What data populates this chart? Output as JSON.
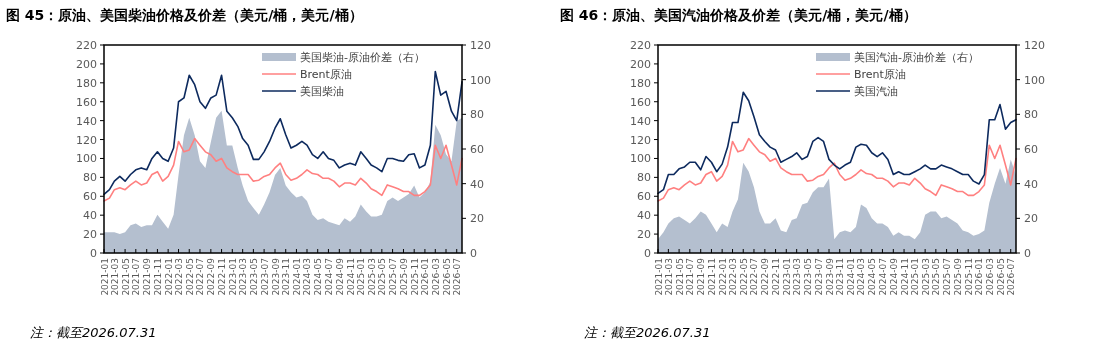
{
  "chart_data": [
    {
      "type": "line",
      "title": "图 45：原油、美国柴油价格及价差（美元/桶，美元/桶）",
      "x": [
        "2021-01",
        "2021-02",
        "2021-03",
        "2021-04",
        "2021-05",
        "2021-06",
        "2021-07",
        "2021-08",
        "2021-09",
        "2021-10",
        "2021-11",
        "2021-12",
        "2022-01",
        "2022-02",
        "2022-03",
        "2022-04",
        "2022-05",
        "2022-06",
        "2022-07",
        "2022-08",
        "2022-09",
        "2022-10",
        "2022-11",
        "2022-12",
        "2023-01",
        "2023-02",
        "2023-03",
        "2023-04",
        "2023-05",
        "2023-06",
        "2023-07",
        "2023-08",
        "2023-09",
        "2023-10",
        "2023-11",
        "2023-12",
        "2024-01",
        "2024-02",
        "2024-03",
        "2024-04",
        "2024-05",
        "2024-06",
        "2024-07",
        "2024-08",
        "2024-09",
        "2024-10",
        "2024-11",
        "2024-12",
        "2025-01",
        "2025-02",
        "2025-03",
        "2025-04",
        "2025-05",
        "2025-06",
        "2025-07",
        "2025-08",
        "2025-09",
        "2025-10",
        "2025-11",
        "2025-12",
        "2026-01",
        "2026-02",
        "2026-03",
        "2026-04",
        "2026-05",
        "2026-06",
        "2026-07",
        "2026-07-31"
      ],
      "xlim": [
        "2021-01",
        "2026-07-31"
      ],
      "xticks": [
        "2021-01",
        "2021-03",
        "2021-05",
        "2021-07",
        "2021-09",
        "2021-11",
        "2022-01",
        "2022-03",
        "2022-05",
        "2022-07",
        "2022-09",
        "2022-11",
        "2023-01",
        "2023-03",
        "2023-05",
        "2023-07",
        "2023-09",
        "2023-11",
        "2024-01",
        "2024-03",
        "2024-05",
        "2024-07",
        "2024-09",
        "2024-11",
        "2025-01",
        "2025-03",
        "2025-05",
        "2025-07",
        "2025-09",
        "2025-11",
        "2026-01",
        "2026-03",
        "2026-05",
        "2026-07"
      ],
      "ylim": [
        0,
        220
      ],
      "yticks": [
        0,
        20,
        40,
        60,
        80,
        100,
        120,
        140,
        160,
        180,
        200,
        220
      ],
      "y2lim": [
        0,
        120
      ],
      "y2ticks": [
        0,
        20,
        40,
        60,
        80,
        100,
        120
      ],
      "legend": "top right",
      "series": [
        {
          "name": "美国柴油-原油价差（右）",
          "type": "area",
          "axis": "y2",
          "color": "#b4bfcf",
          "values": [
            12,
            12,
            12,
            11,
            12,
            16,
            17,
            15,
            16,
            16,
            22,
            18,
            14,
            22,
            45,
            68,
            78,
            68,
            53,
            49,
            64,
            78,
            82,
            62,
            62,
            49,
            39,
            30,
            26,
            22,
            28,
            35,
            45,
            49,
            39,
            35,
            32,
            33,
            30,
            22,
            19,
            20,
            18,
            17,
            16,
            20,
            18,
            21,
            28,
            24,
            21,
            21,
            22,
            30,
            32,
            30,
            32,
            34,
            39,
            32,
            35,
            41,
            74,
            68,
            57,
            53,
            76,
            78
          ]
        },
        {
          "name": "Brent原油",
          "color": "#ff8080",
          "values": [
            55,
            58,
            67,
            69,
            67,
            72,
            76,
            72,
            74,
            83,
            86,
            76,
            81,
            93,
            118,
            107,
            109,
            121,
            114,
            107,
            104,
            97,
            100,
            90,
            86,
            83,
            83,
            83,
            76,
            77,
            81,
            83,
            90,
            95,
            83,
            77,
            79,
            83,
            88,
            84,
            83,
            79,
            79,
            76,
            70,
            74,
            74,
            72,
            79,
            74,
            68,
            65,
            61,
            72,
            70,
            68,
            65,
            65,
            61,
            61,
            65,
            72,
            114,
            100,
            114,
            93,
            72,
            100
          ]
        },
        {
          "name": "美国柴油",
          "color": "#0d2a5e",
          "values": [
            62,
            67,
            76,
            81,
            76,
            83,
            88,
            90,
            88,
            100,
            107,
            100,
            97,
            111,
            160,
            164,
            188,
            178,
            160,
            153,
            164,
            167,
            188,
            150,
            143,
            134,
            121,
            114,
            99,
            99,
            107,
            118,
            132,
            142,
            125,
            111,
            114,
            118,
            114,
            104,
            100,
            107,
            100,
            98,
            90,
            93,
            95,
            93,
            107,
            100,
            93,
            90,
            86,
            100,
            100,
            98,
            97,
            104,
            105,
            90,
            93,
            114,
            192,
            167,
            171,
            150,
            140,
            181
          ]
        }
      ],
      "annotations": [
        "注：截至2026.07.31"
      ]
    },
    {
      "type": "line",
      "title": "图 46：原油、美国汽油价格及价差（美元/桶，美元/桶）",
      "x": [
        "2021-01",
        "2021-02",
        "2021-03",
        "2021-04",
        "2021-05",
        "2021-06",
        "2021-07",
        "2021-08",
        "2021-09",
        "2021-10",
        "2021-11",
        "2021-12",
        "2022-01",
        "2022-02",
        "2022-03",
        "2022-04",
        "2022-05",
        "2022-06",
        "2022-07",
        "2022-08",
        "2022-09",
        "2022-10",
        "2022-11",
        "2022-12",
        "2023-01",
        "2023-02",
        "2023-03",
        "2023-04",
        "2023-05",
        "2023-06",
        "2023-07",
        "2023-08",
        "2023-09",
        "2023-10",
        "2023-11",
        "2023-12",
        "2024-01",
        "2024-02",
        "2024-03",
        "2024-04",
        "2024-05",
        "2024-06",
        "2024-07",
        "2024-08",
        "2024-09",
        "2024-10",
        "2024-11",
        "2024-12",
        "2025-01",
        "2025-02",
        "2025-03",
        "2025-04",
        "2025-05",
        "2025-06",
        "2025-07",
        "2025-08",
        "2025-09",
        "2025-10",
        "2025-11",
        "2025-12",
        "2026-01",
        "2026-02",
        "2026-03",
        "2026-04",
        "2026-05",
        "2026-06",
        "2026-07",
        "2026-07-31"
      ],
      "xlim": [
        "2021-01",
        "2026-07-31"
      ],
      "xticks": [
        "2021-01",
        "2021-03",
        "2021-05",
        "2021-07",
        "2021-09",
        "2021-11",
        "2022-01",
        "2022-03",
        "2022-05",
        "2022-07",
        "2022-09",
        "2022-11",
        "2023-01",
        "2023-03",
        "2023-05",
        "2023-07",
        "2023-09",
        "2023-11",
        "2024-01",
        "2024-03",
        "2024-05",
        "2024-07",
        "2024-09",
        "2024-11",
        "2025-01",
        "2025-03",
        "2025-05",
        "2025-07",
        "2025-09",
        "2025-11",
        "2026-01",
        "2026-03",
        "2026-05",
        "2026-07"
      ],
      "ylim": [
        0,
        220
      ],
      "yticks": [
        0,
        20,
        40,
        60,
        80,
        100,
        120,
        140,
        160,
        180,
        200,
        220
      ],
      "y2lim": [
        0,
        120
      ],
      "y2ticks": [
        0,
        20,
        40,
        60,
        80,
        100,
        120
      ],
      "legend": "top right",
      "series": [
        {
          "name": "美国汽油-原油价差（右）",
          "type": "area",
          "axis": "y2",
          "color": "#b4bfcf",
          "values": [
            8,
            12,
            17,
            20,
            21,
            19,
            17,
            20,
            24,
            22,
            17,
            12,
            17,
            15,
            24,
            31,
            52,
            47,
            38,
            24,
            17,
            17,
            20,
            13,
            12,
            19,
            20,
            28,
            29,
            35,
            38,
            38,
            43,
            8,
            12,
            13,
            12,
            15,
            28,
            26,
            20,
            17,
            17,
            15,
            10,
            12,
            10,
            10,
            8,
            12,
            22,
            24,
            24,
            20,
            21,
            19,
            17,
            13,
            12,
            10,
            11,
            13,
            29,
            40,
            49,
            40,
            54,
            45
          ]
        },
        {
          "name": "Brent原油",
          "color": "#ff8080",
          "values": [
            55,
            58,
            67,
            69,
            67,
            72,
            76,
            72,
            74,
            83,
            86,
            76,
            81,
            93,
            118,
            107,
            109,
            121,
            114,
            107,
            104,
            97,
            100,
            90,
            86,
            83,
            83,
            83,
            76,
            77,
            81,
            83,
            90,
            95,
            83,
            77,
            79,
            83,
            88,
            84,
            83,
            79,
            79,
            76,
            70,
            74,
            74,
            72,
            79,
            74,
            68,
            65,
            61,
            72,
            70,
            68,
            65,
            65,
            61,
            61,
            65,
            72,
            114,
            100,
            114,
            93,
            72,
            100
          ]
        },
        {
          "name": "美国汽油",
          "color": "#0d2a5e",
          "values": [
            63,
            67,
            83,
            83,
            89,
            91,
            96,
            96,
            88,
            102,
            96,
            86,
            94,
            112,
            138,
            138,
            170,
            161,
            144,
            125,
            118,
            112,
            109,
            96,
            99,
            102,
            106,
            99,
            102,
            118,
            122,
            118,
            99,
            93,
            89,
            93,
            96,
            112,
            115,
            114,
            106,
            102,
            106,
            99,
            83,
            86,
            83,
            83,
            86,
            89,
            93,
            89,
            89,
            93,
            91,
            89,
            86,
            83,
            83,
            76,
            73,
            83,
            141,
            141,
            157,
            131,
            138,
            141
          ]
        }
      ],
      "annotations": [
        "注：截至2026.07.31"
      ]
    }
  ]
}
